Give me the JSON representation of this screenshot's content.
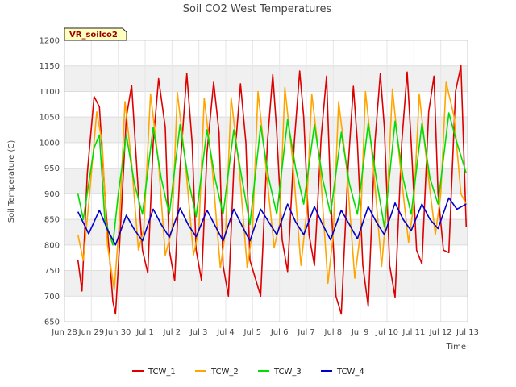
{
  "chart_data": {
    "type": "line",
    "title": "Soil CO2 West Temperatures",
    "xlabel": "Time",
    "ylabel": "Soil Temperature (C)",
    "badge": "VR_soilco2",
    "ylim": [
      650,
      1200
    ],
    "yticks": [
      650,
      700,
      750,
      800,
      850,
      900,
      950,
      1000,
      1050,
      1100,
      1150,
      1200
    ],
    "xlim": [
      0,
      15
    ],
    "xticks": [
      {
        "value": 0,
        "label": "Jun 28"
      },
      {
        "value": 1,
        "label": "Jun 29"
      },
      {
        "value": 2,
        "label": "Jun 30"
      },
      {
        "value": 3,
        "label": "Jul 1"
      },
      {
        "value": 4,
        "label": "Jul 2"
      },
      {
        "value": 5,
        "label": "Jul 3"
      },
      {
        "value": 6,
        "label": "Jul 4"
      },
      {
        "value": 7,
        "label": "Jul 5"
      },
      {
        "value": 8,
        "label": "Jul 6"
      },
      {
        "value": 9,
        "label": "Jul 7"
      },
      {
        "value": 10,
        "label": "Jul 8"
      },
      {
        "value": 11,
        "label": "Jul 9"
      },
      {
        "value": 12,
        "label": "Jul 10"
      },
      {
        "value": 13,
        "label": "Jul 11"
      },
      {
        "value": 14,
        "label": "Jul 12"
      },
      {
        "value": 15,
        "label": "Jul 13"
      }
    ],
    "grid": true,
    "legend_position": "bottom",
    "series": [
      {
        "name": "TCW_1",
        "color": "#dd0000",
        "x": [
          0.5,
          0.65,
          0.85,
          1.1,
          1.3,
          1.5,
          1.8,
          1.9,
          2.05,
          2.3,
          2.5,
          2.75,
          2.9,
          3.1,
          3.3,
          3.5,
          3.75,
          3.9,
          4.1,
          4.3,
          4.55,
          4.75,
          4.9,
          5.1,
          5.3,
          5.55,
          5.75,
          5.9,
          6.1,
          6.3,
          6.55,
          6.75,
          6.9,
          7.1,
          7.3,
          7.55,
          7.75,
          7.9,
          8.1,
          8.3,
          8.55,
          8.75,
          8.9,
          9.1,
          9.3,
          9.55,
          9.75,
          9.9,
          10.1,
          10.3,
          10.55,
          10.75,
          10.9,
          11.1,
          11.3,
          11.55,
          11.75,
          11.9,
          12.1,
          12.3,
          12.55,
          12.75,
          12.9,
          13.1,
          13.3,
          13.55,
          13.75,
          13.9,
          14.1,
          14.3,
          14.55,
          14.75,
          14.95
        ],
        "values": [
          770,
          710,
          940,
          1090,
          1070,
          900,
          690,
          665,
          800,
          1050,
          1112,
          900,
          790,
          745,
          1000,
          1125,
          1030,
          790,
          730,
          950,
          1135,
          1000,
          790,
          730,
          980,
          1118,
          1020,
          760,
          700,
          950,
          1115,
          1000,
          770,
          735,
          700,
          1000,
          1133,
          1020,
          810,
          748,
          1000,
          1140,
          1050,
          820,
          760,
          1010,
          1130,
          900,
          700,
          665,
          950,
          1110,
          1000,
          760,
          680,
          1000,
          1135,
          1030,
          760,
          698,
          1000,
          1138,
          1000,
          790,
          763,
          1060,
          1130,
          900,
          790,
          785,
          1100,
          1150,
          835
        ]
      },
      {
        "name": "TCW_2",
        "color": "#ffa500",
        "x": [
          0.5,
          0.7,
          0.9,
          1.2,
          1.4,
          1.6,
          1.85,
          2.05,
          2.25,
          2.5,
          2.75,
          2.95,
          3.2,
          3.5,
          3.75,
          4.0,
          4.2,
          4.5,
          4.8,
          5.0,
          5.2,
          5.5,
          5.8,
          6.0,
          6.2,
          6.5,
          6.8,
          7.0,
          7.2,
          7.5,
          7.8,
          8.0,
          8.2,
          8.5,
          8.8,
          9.0,
          9.2,
          9.5,
          9.8,
          10.0,
          10.2,
          10.5,
          10.8,
          11.0,
          11.2,
          11.5,
          11.8,
          12.0,
          12.2,
          12.5,
          12.8,
          13.0,
          13.2,
          13.5,
          13.8,
          14.0,
          14.2,
          14.5,
          14.75,
          14.95
        ],
        "values": [
          820,
          770,
          880,
          1060,
          1000,
          800,
          712,
          850,
          1080,
          960,
          790,
          830,
          1095,
          960,
          780,
          830,
          1098,
          960,
          780,
          830,
          1087,
          950,
          755,
          830,
          1088,
          950,
          755,
          830,
          1100,
          950,
          795,
          840,
          1108,
          960,
          760,
          860,
          1095,
          960,
          725,
          820,
          1080,
          950,
          735,
          820,
          1100,
          950,
          758,
          880,
          1105,
          950,
          805,
          880,
          1095,
          950,
          820,
          900,
          1118,
          1050,
          900,
          880
        ]
      },
      {
        "name": "TCW_3",
        "color": "#00dd00",
        "x": [
          0.5,
          0.7,
          0.9,
          1.1,
          1.3,
          1.5,
          1.8,
          2.0,
          2.3,
          2.6,
          2.9,
          3.3,
          3.6,
          3.9,
          4.3,
          4.6,
          4.9,
          5.3,
          5.6,
          5.9,
          6.3,
          6.6,
          6.9,
          7.3,
          7.6,
          7.9,
          8.3,
          8.6,
          8.9,
          9.3,
          9.6,
          9.9,
          10.3,
          10.6,
          10.9,
          11.3,
          11.6,
          11.9,
          12.3,
          12.6,
          12.9,
          13.3,
          13.6,
          13.9,
          14.3,
          14.6,
          14.95
        ],
        "values": [
          900,
          850,
          920,
          990,
          1015,
          850,
          800,
          900,
          1015,
          920,
          860,
          1030,
          930,
          860,
          1035,
          930,
          855,
          1025,
          930,
          860,
          1025,
          930,
          840,
          1033,
          930,
          860,
          1045,
          950,
          880,
          1035,
          930,
          860,
          1020,
          920,
          860,
          1037,
          930,
          835,
          1042,
          930,
          860,
          1037,
          930,
          880,
          1058,
          1000,
          940
        ]
      },
      {
        "name": "TCW_4",
        "color": "#0000cc",
        "x": [
          0.5,
          0.9,
          1.3,
          1.6,
          1.9,
          2.3,
          2.6,
          2.9,
          3.3,
          3.6,
          3.9,
          4.3,
          4.6,
          4.9,
          5.3,
          5.6,
          5.9,
          6.3,
          6.6,
          6.9,
          7.3,
          7.6,
          7.9,
          8.3,
          8.6,
          8.9,
          9.3,
          9.6,
          9.9,
          10.3,
          10.6,
          10.9,
          11.3,
          11.6,
          11.9,
          12.3,
          12.6,
          12.9,
          13.3,
          13.6,
          13.9,
          14.3,
          14.6,
          14.95
        ],
        "values": [
          865,
          822,
          868,
          830,
          800,
          858,
          830,
          808,
          870,
          840,
          815,
          872,
          840,
          816,
          868,
          838,
          808,
          870,
          838,
          808,
          870,
          845,
          820,
          880,
          845,
          820,
          875,
          840,
          810,
          868,
          840,
          812,
          875,
          845,
          820,
          882,
          850,
          828,
          880,
          850,
          832,
          892,
          870,
          880
        ]
      }
    ]
  }
}
